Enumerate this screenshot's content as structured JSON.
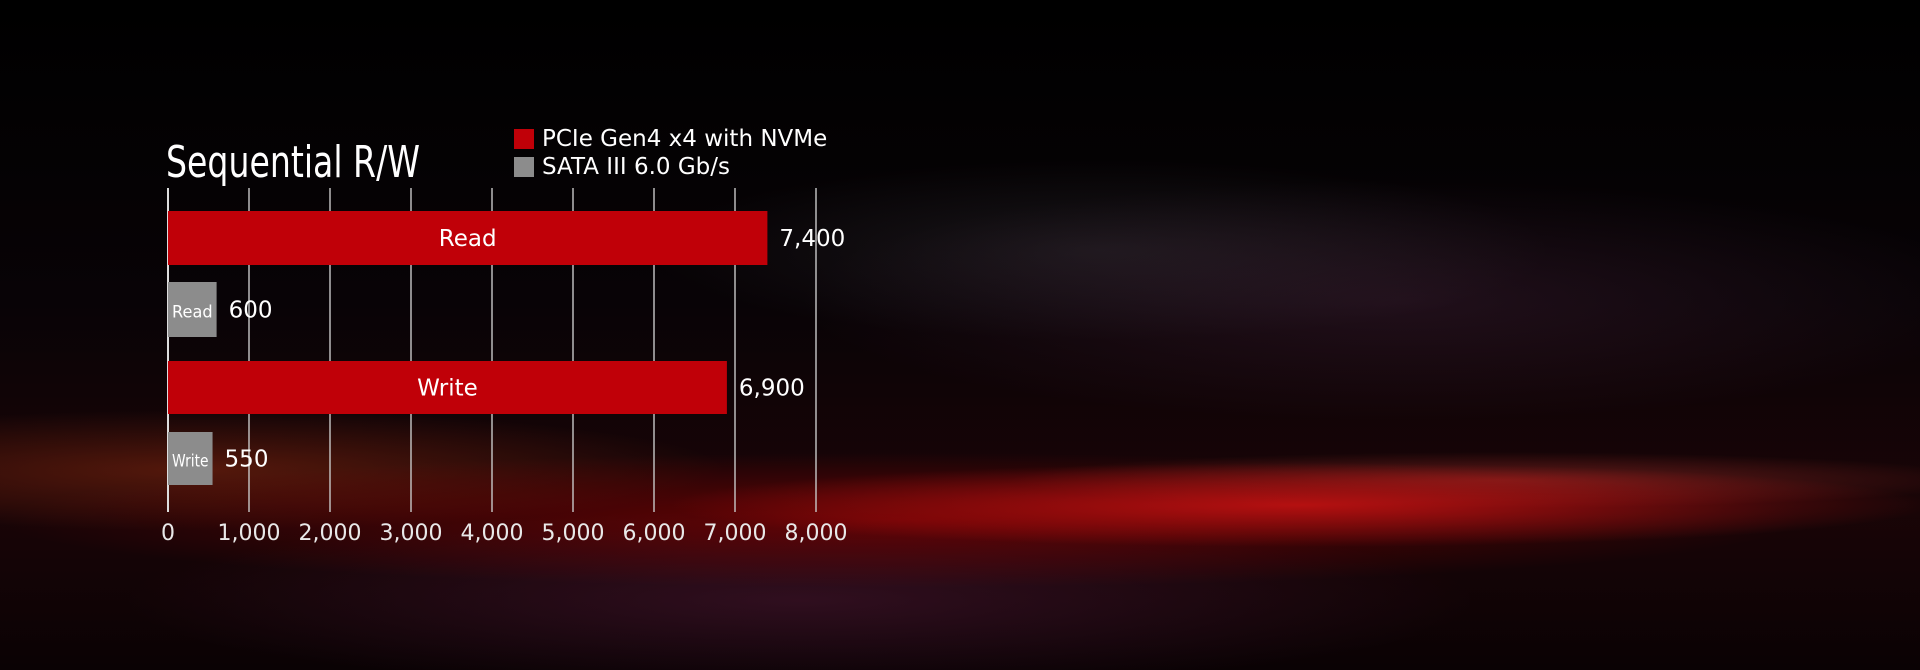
{
  "chart_data": {
    "type": "bar",
    "orientation": "horizontal",
    "title": "Sequential R/W",
    "legend": [
      {
        "name": "PCIe Gen4 x4 with NVMe",
        "color": "#c00008"
      },
      {
        "name": "SATA III 6.0 Gb/s",
        "color": "#8c8c8c"
      }
    ],
    "legend_placement": "top-right",
    "bars": [
      {
        "label": "Read",
        "value": 7400,
        "value_label": "7,400",
        "series": 0
      },
      {
        "label": "Read",
        "value": 600,
        "value_label": "600",
        "series": 1
      },
      {
        "label": "Write",
        "value": 6900,
        "value_label": "6,900",
        "series": 0
      },
      {
        "label": "Write",
        "value": 550,
        "value_label": "550",
        "series": 1
      }
    ],
    "xlim": [
      0,
      8000
    ],
    "xticks": [
      0,
      1000,
      2000,
      3000,
      4000,
      5000,
      6000,
      7000,
      8000
    ],
    "xtick_labels": [
      "0",
      "1,000",
      "2,000",
      "3,000",
      "4,000",
      "5,000",
      "6,000",
      "7,000",
      "8,000"
    ],
    "grid": true,
    "xlabel": "",
    "ylabel": ""
  }
}
